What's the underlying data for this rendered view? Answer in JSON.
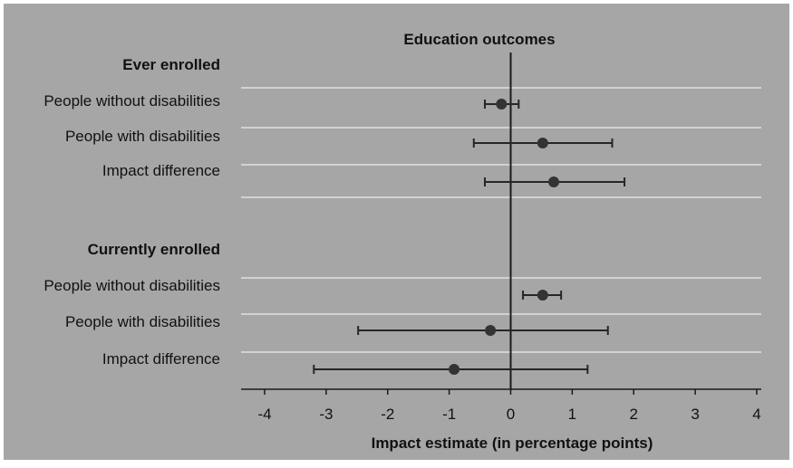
{
  "colors": {
    "panel_bg": "#a6a6a6",
    "frame": "#ffffff",
    "separator": "#ffffff",
    "marker": "#333333",
    "error_bar": "#262626",
    "axis": "#1a1a1a",
    "text": "#111111"
  },
  "chart_data": {
    "type": "forest",
    "title": "Education outcomes",
    "xlabel": "Impact estimate (in percentage points)",
    "xlim": [
      -4,
      4
    ],
    "x_ticks": [
      "-4",
      "-3",
      "-2",
      "-1",
      "0",
      "1",
      "2",
      "3",
      "4"
    ],
    "reference_line_x": 0,
    "grid": false,
    "groups": [
      {
        "heading": "Ever enrolled",
        "rows": [
          {
            "label": "People without disabilities",
            "estimate": -0.15,
            "ci": [
              -0.42,
              0.13
            ]
          },
          {
            "label": "People with disabilities",
            "estimate": 0.52,
            "ci": [
              -0.6,
              1.65
            ]
          },
          {
            "label": "Impact difference",
            "estimate": 0.7,
            "ci": [
              -0.42,
              1.85
            ]
          }
        ]
      },
      {
        "heading": "Currently enrolled",
        "rows": [
          {
            "label": "People without disabilities",
            "estimate": 0.52,
            "ci": [
              0.2,
              0.82
            ]
          },
          {
            "label": "People with disabilities",
            "estimate": -0.33,
            "ci": [
              -2.48,
              1.58
            ]
          },
          {
            "label": "Impact difference",
            "estimate": -0.92,
            "ci": [
              -3.2,
              1.25
            ]
          }
        ]
      }
    ]
  }
}
